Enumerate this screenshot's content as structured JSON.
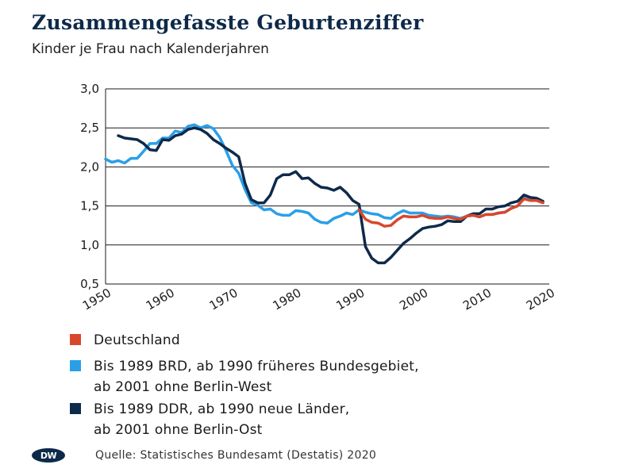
{
  "header": {
    "title": "Zusammengefasste Geburtenziffer",
    "subtitle": "Kinder je Frau nach Kalenderjahren"
  },
  "colors": {
    "deutschland": "#d9472b",
    "brd": "#2a9fe8",
    "ddr": "#0e2a4a",
    "grid": "#1a1a1a"
  },
  "chart_data": {
    "type": "line",
    "title": "Zusammengefasste Geburtenziffer",
    "subtitle": "Kinder je Frau nach Kalenderjahren",
    "xlabel": "",
    "ylabel": "",
    "xlim": [
      1950,
      2020
    ],
    "ylim": [
      0.5,
      3.0
    ],
    "x_ticks": [
      "1950",
      "1960",
      "1970",
      "1980",
      "1990",
      "2000",
      "2010",
      "2020"
    ],
    "y_ticks": [
      {
        "value": 0.5,
        "label": "0,5"
      },
      {
        "value": 1.0,
        "label": "1,0"
      },
      {
        "value": 1.5,
        "label": "1,5"
      },
      {
        "value": 2.0,
        "label": "2,0"
      },
      {
        "value": 2.5,
        "label": "2,5"
      },
      {
        "value": 3.0,
        "label": "3,0"
      }
    ],
    "series": [
      {
        "key": "deutschland",
        "name": "Deutschland",
        "x": [
          1990,
          1991,
          1992,
          1993,
          1994,
          1995,
          1996,
          1997,
          1998,
          1999,
          2000,
          2001,
          2002,
          2003,
          2004,
          2005,
          2006,
          2007,
          2008,
          2009,
          2010,
          2011,
          2012,
          2013,
          2014,
          2015,
          2016,
          2017,
          2018,
          2019
        ],
        "values": [
          1.45,
          1.33,
          1.29,
          1.28,
          1.24,
          1.25,
          1.32,
          1.37,
          1.36,
          1.36,
          1.38,
          1.35,
          1.34,
          1.34,
          1.36,
          1.34,
          1.33,
          1.37,
          1.38,
          1.36,
          1.39,
          1.39,
          1.41,
          1.42,
          1.47,
          1.5,
          1.59,
          1.57,
          1.57,
          1.54
        ]
      },
      {
        "key": "brd",
        "name": "Bis 1989 BRD, ab 1990 früheres Bundesgebiet,\nab 2001 ohne Berlin-West",
        "x": [
          1950,
          1951,
          1952,
          1953,
          1954,
          1955,
          1956,
          1957,
          1958,
          1959,
          1960,
          1961,
          1962,
          1963,
          1964,
          1965,
          1966,
          1967,
          1968,
          1969,
          1970,
          1971,
          1972,
          1973,
          1974,
          1975,
          1976,
          1977,
          1978,
          1979,
          1980,
          1981,
          1982,
          1983,
          1984,
          1985,
          1986,
          1987,
          1988,
          1989,
          1990,
          1991,
          1992,
          1993,
          1994,
          1995,
          1996,
          1997,
          1998,
          1999,
          2000,
          2001,
          2002,
          2003,
          2004,
          2005,
          2006,
          2007,
          2008,
          2009,
          2010,
          2011,
          2012,
          2013,
          2014,
          2015,
          2016,
          2017,
          2018,
          2019
        ],
        "values": [
          2.1,
          2.06,
          2.08,
          2.05,
          2.11,
          2.11,
          2.2,
          2.3,
          2.3,
          2.37,
          2.37,
          2.46,
          2.44,
          2.52,
          2.54,
          2.5,
          2.53,
          2.49,
          2.38,
          2.21,
          2.02,
          1.92,
          1.71,
          1.54,
          1.51,
          1.45,
          1.46,
          1.4,
          1.38,
          1.38,
          1.44,
          1.43,
          1.41,
          1.33,
          1.29,
          1.28,
          1.34,
          1.37,
          1.41,
          1.39,
          1.45,
          1.42,
          1.4,
          1.39,
          1.35,
          1.34,
          1.4,
          1.44,
          1.41,
          1.41,
          1.41,
          1.38,
          1.37,
          1.36,
          1.37,
          1.36,
          1.34,
          1.37,
          1.38,
          1.36,
          1.39,
          1.39,
          1.41,
          1.42,
          1.47,
          1.5,
          1.6,
          1.58,
          1.58,
          1.55
        ]
      },
      {
        "key": "ddr",
        "name": "Bis 1989 DDR, ab 1990 neue Länder,\nab 2001 ohne Berlin-Ost",
        "x": [
          1952,
          1953,
          1954,
          1955,
          1956,
          1957,
          1958,
          1959,
          1960,
          1961,
          1962,
          1963,
          1964,
          1965,
          1966,
          1967,
          1968,
          1969,
          1970,
          1971,
          1972,
          1973,
          1974,
          1975,
          1976,
          1977,
          1978,
          1979,
          1980,
          1981,
          1982,
          1983,
          1984,
          1985,
          1986,
          1987,
          1988,
          1989,
          1990,
          1991,
          1992,
          1993,
          1994,
          1995,
          1996,
          1997,
          1998,
          1999,
          2000,
          2001,
          2002,
          2003,
          2004,
          2005,
          2006,
          2007,
          2008,
          2009,
          2010,
          2011,
          2012,
          2013,
          2014,
          2015,
          2016,
          2017,
          2018,
          2019
        ],
        "values": [
          2.4,
          2.37,
          2.36,
          2.35,
          2.3,
          2.22,
          2.21,
          2.35,
          2.34,
          2.4,
          2.42,
          2.48,
          2.5,
          2.48,
          2.43,
          2.35,
          2.3,
          2.24,
          2.19,
          2.13,
          1.79,
          1.58,
          1.54,
          1.54,
          1.64,
          1.85,
          1.9,
          1.9,
          1.94,
          1.85,
          1.86,
          1.79,
          1.74,
          1.73,
          1.7,
          1.74,
          1.67,
          1.57,
          1.52,
          0.98,
          0.83,
          0.77,
          0.77,
          0.84,
          0.93,
          1.02,
          1.08,
          1.15,
          1.21,
          1.23,
          1.24,
          1.26,
          1.31,
          1.3,
          1.3,
          1.37,
          1.4,
          1.4,
          1.46,
          1.46,
          1.49,
          1.5,
          1.54,
          1.56,
          1.64,
          1.61,
          1.6,
          1.56
        ]
      }
    ]
  },
  "legend": [
    {
      "key": "deutschland",
      "label": "Deutschland"
    },
    {
      "key": "brd",
      "label": "Bis 1989 BRD, ab 1990 früheres Bundesgebiet,\nab 2001 ohne Berlin-West"
    },
    {
      "key": "ddr",
      "label": "Bis 1989 DDR, ab 1990 neue Länder,\nab 2001 ohne Berlin-Ost"
    }
  ],
  "footer": {
    "logo_text": "DW",
    "source": "Quelle: Statistisches Bundesamt (Destatis) 2020"
  }
}
